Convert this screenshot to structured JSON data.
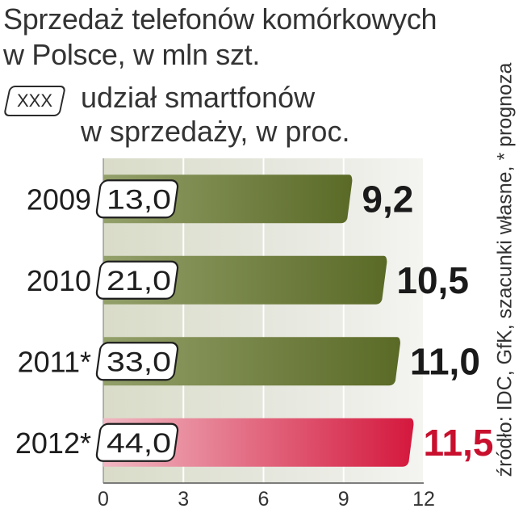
{
  "title_line1": "Sprzedaż telefonów komórkowych",
  "title_line2": "w Polsce, w mln szt.",
  "legend": {
    "box_label": "XXX",
    "text_line1": "udział smartfonów",
    "text_line2": "w sprzedaży, w proc."
  },
  "source": "źródło: IDC, GfK, szacunki własne, * prognoza",
  "colors": {
    "bar_main": "#5a6a26",
    "bar_highlight": "#d4183d",
    "value_main": "#1a1a1a",
    "value_highlight": "#c8102e",
    "plot_band": "#d9dcc8"
  },
  "chart_data": {
    "type": "bar",
    "orientation": "horizontal",
    "categories": [
      "2009",
      "2010",
      "2011*",
      "2012*"
    ],
    "series": [
      {
        "values": [
          9.2,
          10.5,
          11.0,
          11.5
        ],
        "value_labels": [
          "9,2",
          "10,5",
          "11,0",
          "11,5"
        ]
      }
    ],
    "smartphone_share": [
      13.0,
      21.0,
      33.0,
      44.0
    ],
    "smartphone_share_labels": [
      "13,0",
      "21,0",
      "33,0",
      "44,0"
    ],
    "highlight_index": 3,
    "x_ticks": [
      0,
      3,
      6,
      9,
      12
    ],
    "xlim": [
      0,
      12
    ],
    "grid": true
  }
}
